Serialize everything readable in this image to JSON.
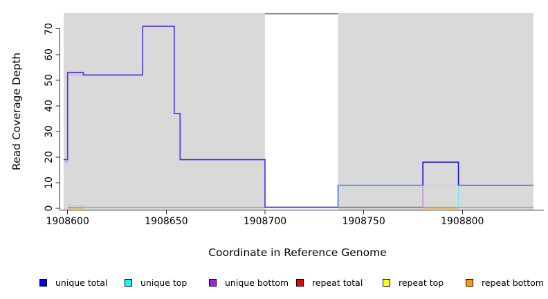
{
  "figure_title": "",
  "axes": {
    "xlabel": "Coordinate in Reference Genome",
    "ylabel": "Read Coverage Depth"
  },
  "legend": {
    "items": [
      {
        "label": "unique total",
        "color": "#0000ee"
      },
      {
        "label": "unique top",
        "color": "#00ffff"
      },
      {
        "label": "unique bottom",
        "color": "#a020f0"
      },
      {
        "label": "repeat total",
        "color": "#ee0000"
      },
      {
        "label": "repeat top",
        "color": "#ffff00"
      },
      {
        "label": "repeat bottom",
        "color": "#ff9912"
      }
    ]
  },
  "chart_data": {
    "type": "line",
    "subtype": "step-coverage",
    "title": "",
    "xlabel": "Coordinate in Reference Genome",
    "ylabel": "Read Coverage Depth",
    "xlim": [
      1908598,
      1908836
    ],
    "ylim": [
      0,
      76
    ],
    "x_ticks": [
      1908600,
      1908650,
      1908700,
      1908750,
      1908800
    ],
    "y_ticks": [
      0,
      10,
      20,
      30,
      40,
      50,
      60,
      70
    ],
    "grid": false,
    "legend_position": "bottom",
    "background": {
      "plot_bg": "#ffffff",
      "shaded_regions": [
        {
          "from": 1908598,
          "to": 1908700,
          "color": "#d9d9d9"
        },
        {
          "from": 1908737,
          "to": 1908836,
          "color": "#d9d9d9"
        }
      ],
      "gap_top_line": {
        "from": 1908700,
        "to": 1908737,
        "color": "#8d8d8d"
      }
    },
    "series": [
      {
        "name": "unique total",
        "color": "#0000ee",
        "step_points": [
          [
            1908598,
            19
          ],
          [
            1908600,
            53
          ],
          [
            1908608,
            52
          ],
          [
            1908638,
            71
          ],
          [
            1908654,
            37
          ],
          [
            1908657,
            19
          ],
          [
            1908700,
            0
          ],
          [
            1908737,
            9
          ],
          [
            1908780,
            18
          ],
          [
            1908798,
            9
          ]
        ],
        "end_x": 1908836
      },
      {
        "name": "unique top",
        "color": "#00ffff",
        "step_points": [
          [
            1908598,
            1
          ],
          [
            1908608,
            0
          ],
          [
            1908737,
            9
          ],
          [
            1908798,
            0
          ]
        ],
        "end_x": 1908836
      },
      {
        "name": "unique bottom",
        "color": "#a020f0",
        "step_points": [
          [
            1908598,
            18
          ],
          [
            1908600,
            52
          ],
          [
            1908638,
            71
          ],
          [
            1908654,
            37
          ],
          [
            1908657,
            19
          ],
          [
            1908700,
            0
          ],
          [
            1908780,
            9
          ]
        ],
        "end_x": 1908836
      },
      {
        "name": "repeat total",
        "color": "#ee0000",
        "step_points": [
          [
            1908598,
            0
          ]
        ],
        "end_x": 1908836
      },
      {
        "name": "repeat top",
        "color": "#ffff00",
        "step_points": [
          [
            1908598,
            0
          ]
        ],
        "end_x": 1908836
      },
      {
        "name": "repeat bottom",
        "color": "#ff9912",
        "step_points": [
          [
            1908598,
            0
          ]
        ],
        "end_x": 1908836
      }
    ],
    "render_segments": [
      {
        "name": "zero-line-green",
        "color": "#6ec46e",
        "width": 1.3,
        "pts": [
          [
            1908600,
            0.4
          ],
          [
            1908836,
            0.4
          ]
        ]
      },
      {
        "name": "zero-line-red",
        "color": "#e0435c",
        "width": 1.3,
        "pts": [
          [
            1908737,
            0.4
          ],
          [
            1908780,
            0.4
          ]
        ]
      },
      {
        "name": "zero-line-orange-left",
        "color": "#ff9d15",
        "width": 1.6,
        "pts": [
          [
            1908600,
            0.15
          ],
          [
            1908608,
            0.15
          ]
        ]
      },
      {
        "name": "zero-line-orange-right",
        "color": "#ff9d15",
        "width": 1.6,
        "pts": [
          [
            1908780,
            0.15
          ],
          [
            1908798,
            0.15
          ]
        ]
      },
      {
        "name": "cyan-step-left",
        "color": "#6ae9ec",
        "width": 1.3,
        "pts": [
          [
            1908600,
            1.1
          ],
          [
            1908608,
            1.1
          ],
          [
            1908608,
            0.4
          ]
        ]
      },
      {
        "name": "plum-under-line",
        "color": "#daa9da",
        "width": 1.3,
        "pts": [
          [
            1908598,
            18
          ],
          [
            1908600,
            18
          ],
          [
            1908600,
            52
          ],
          [
            1908608,
            52
          ]
        ]
      },
      {
        "name": "main-total-left",
        "color": "#5d30ea",
        "width": 1.7,
        "pts": [
          [
            1908598,
            19
          ],
          [
            1908600,
            19
          ],
          [
            1908600,
            53
          ],
          [
            1908608,
            53
          ],
          [
            1908608,
            52
          ],
          [
            1908638,
            52
          ],
          [
            1908638,
            71
          ],
          [
            1908654,
            71
          ],
          [
            1908654,
            37
          ],
          [
            1908657,
            37
          ],
          [
            1908657,
            19
          ],
          [
            1908700,
            19
          ],
          [
            1908700,
            0.4
          ],
          [
            1908737,
            0.4
          ]
        ]
      },
      {
        "name": "magenta-vertical",
        "color": "#c77ad0",
        "width": 1.3,
        "pts": [
          [
            1908780,
            0.4
          ],
          [
            1908780,
            9
          ]
        ]
      },
      {
        "name": "cyan-vertical-right",
        "color": "#66e8ea",
        "width": 1.3,
        "pts": [
          [
            1908798,
            9
          ],
          [
            1908798,
            0.4
          ]
        ]
      },
      {
        "name": "lavender-nine-line",
        "color": "#c8c6f4",
        "width": 1.3,
        "pts": [
          [
            1908780,
            9
          ],
          [
            1908798,
            9
          ]
        ]
      },
      {
        "name": "blue-nine-line",
        "color": "#3e7ef0",
        "width": 1.7,
        "pts": [
          [
            1908737,
            0.4
          ],
          [
            1908737,
            9
          ],
          [
            1908780,
            9
          ]
        ]
      },
      {
        "name": "navy-eighteen-block",
        "color": "#1b16d1",
        "width": 1.7,
        "pts": [
          [
            1908780,
            9
          ],
          [
            1908780,
            18
          ],
          [
            1908798,
            18
          ],
          [
            1908798,
            9
          ]
        ]
      },
      {
        "name": "purple-nine-line",
        "color": "#8145ec",
        "width": 1.7,
        "pts": [
          [
            1908798,
            9
          ],
          [
            1908836,
            9
          ]
        ]
      }
    ]
  }
}
